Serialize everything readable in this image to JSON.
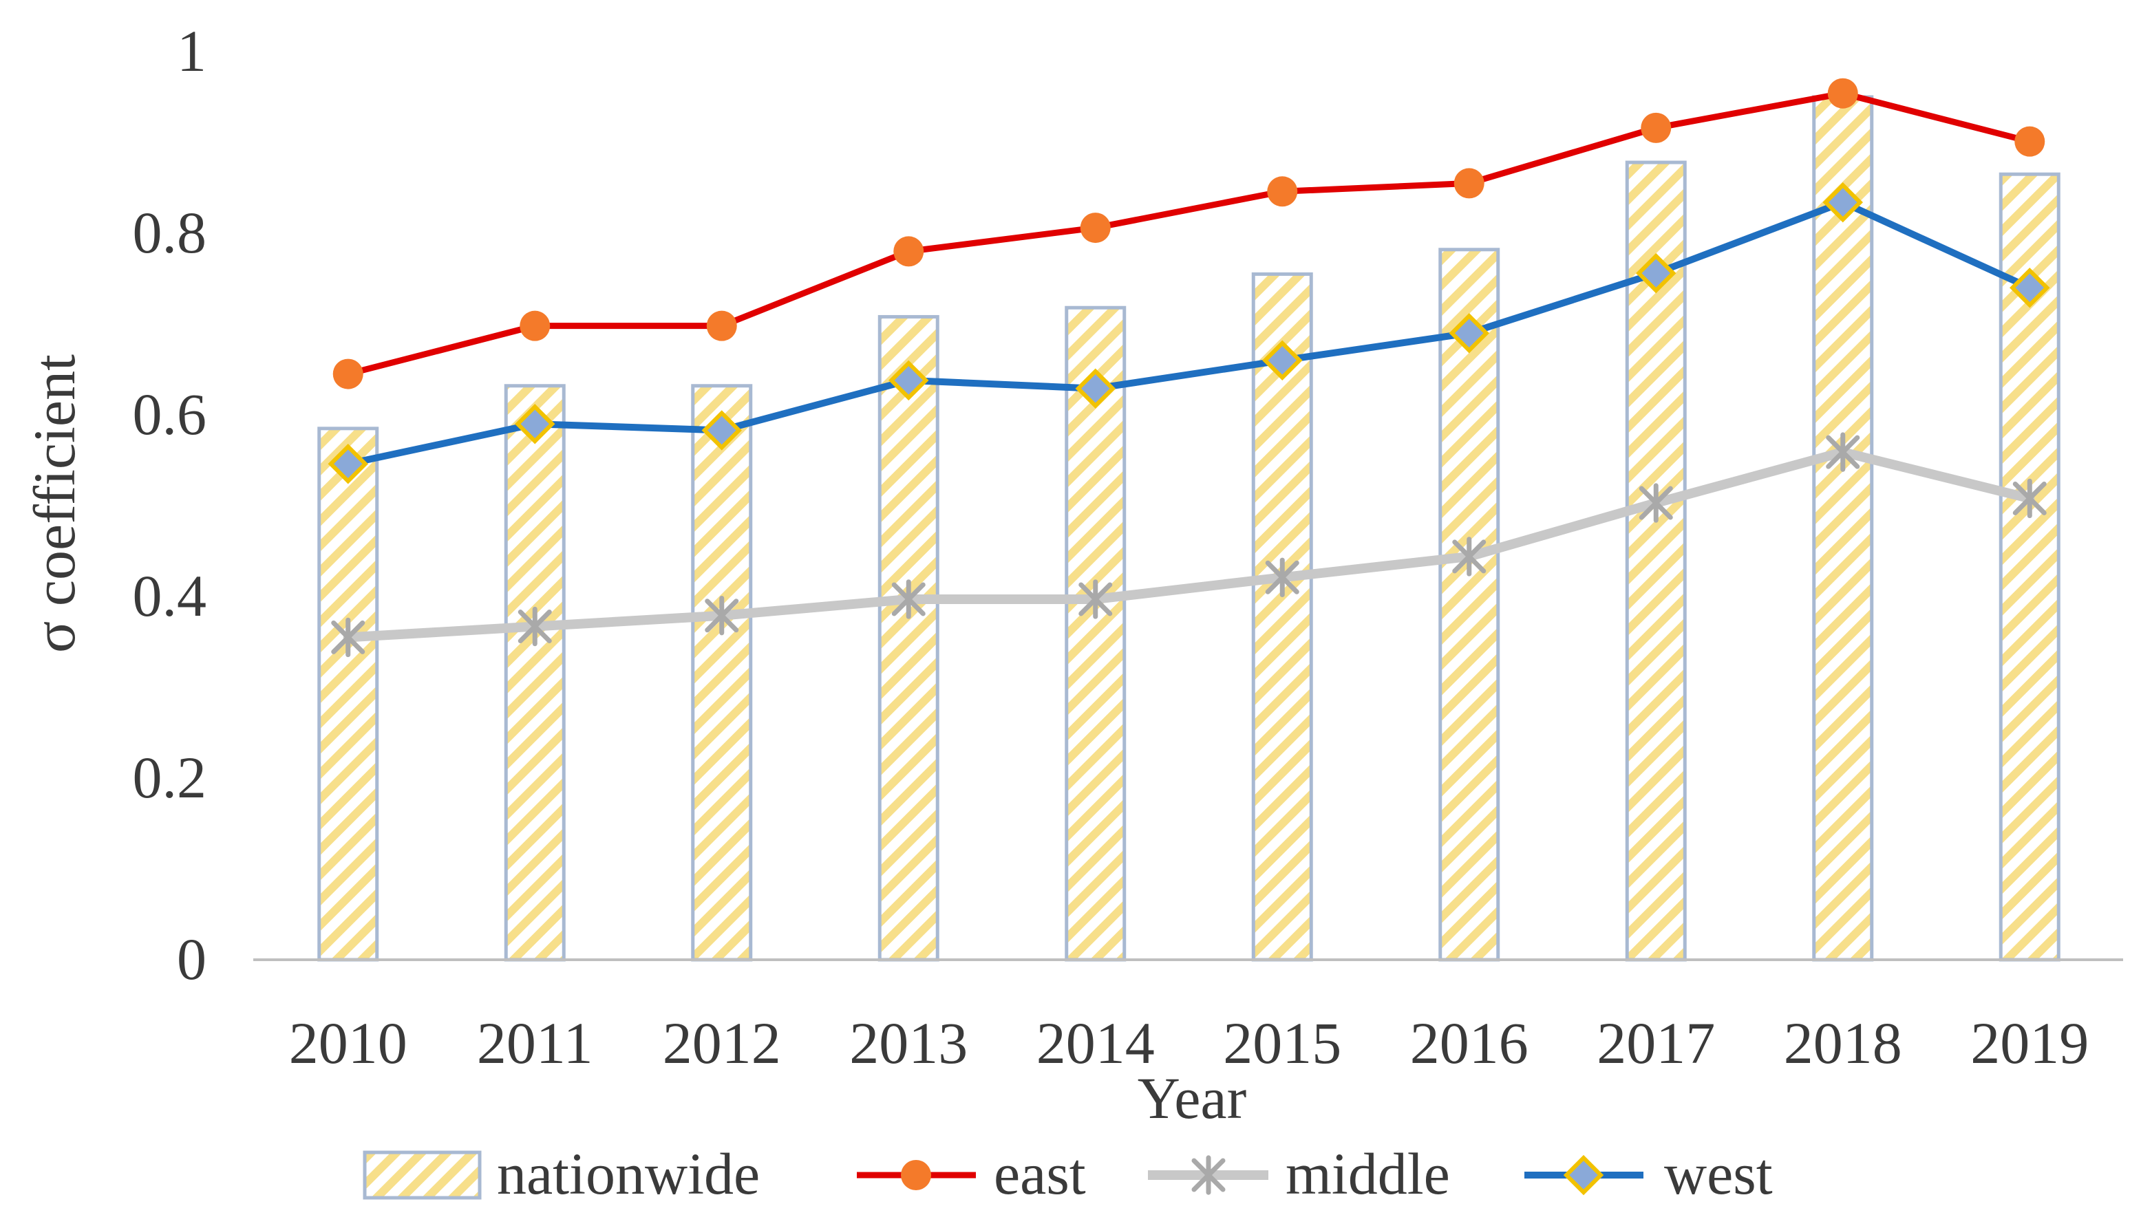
{
  "colors": {
    "east": "#e00000",
    "east_marker": "#f47a2a",
    "middle": "#c8c8c8",
    "middle_marker": "#a9a9a9",
    "west": "#1f6fc0",
    "west_marker_fill": "#8aa9d8",
    "west_marker_stroke": "#f2c200",
    "bar_stroke": "#a8b9d2",
    "bar_hatch": "#f7df8a",
    "axis": "#bfbfbf"
  },
  "chart_data": {
    "type": "bar+line",
    "title": "",
    "xlabel": "Year",
    "ylabel": "σ coefficient",
    "ylim": [
      0,
      1
    ],
    "yticks": [
      0,
      0.2,
      0.4,
      0.6,
      0.8,
      1
    ],
    "ytick_labels": [
      "0",
      "0.2",
      "0.4",
      "0.6",
      "0.8",
      "1"
    ],
    "categories": [
      "2010",
      "2011",
      "2012",
      "2013",
      "2014",
      "2015",
      "2016",
      "2017",
      "2018",
      "2019"
    ],
    "grid": false,
    "legend_position": "bottom",
    "series": [
      {
        "name": "nationwide",
        "type": "bar",
        "values": [
          0.585,
          0.632,
          0.632,
          0.708,
          0.718,
          0.755,
          0.782,
          0.878,
          0.95,
          0.865
        ]
      },
      {
        "name": "east",
        "type": "line",
        "marker": "circle",
        "values": [
          0.645,
          0.698,
          0.698,
          0.78,
          0.806,
          0.846,
          0.855,
          0.916,
          0.954,
          0.901
        ]
      },
      {
        "name": "middle",
        "type": "line",
        "marker": "asterisk",
        "values": [
          0.355,
          0.367,
          0.379,
          0.397,
          0.397,
          0.421,
          0.444,
          0.503,
          0.559,
          0.508
        ]
      },
      {
        "name": "west",
        "type": "line",
        "marker": "diamond",
        "values": [
          0.546,
          0.59,
          0.583,
          0.638,
          0.629,
          0.66,
          0.69,
          0.756,
          0.834,
          0.74
        ]
      }
    ]
  }
}
